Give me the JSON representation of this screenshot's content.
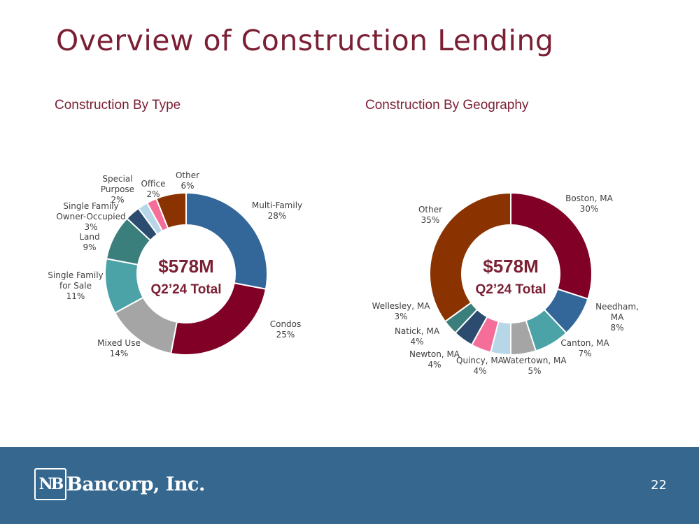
{
  "title": "Overview of Construction Lending",
  "chart_data": [
    {
      "type": "pie",
      "heading": "Construction By Type",
      "center": {
        "line1": "$578M",
        "line2": "Q2’24 Total"
      },
      "slices": [
        {
          "label": [
            "Multi-Family"
          ],
          "value": 28,
          "pct": "28%",
          "color": "#336699"
        },
        {
          "label": [
            "Condos"
          ],
          "value": 25,
          "pct": "25%",
          "color": "#800026"
        },
        {
          "label": [
            "Mixed Use"
          ],
          "value": 14,
          "pct": "14%",
          "color": "#a5a5a5"
        },
        {
          "label": [
            "Single Family",
            "for Sale"
          ],
          "value": 11,
          "pct": "11%",
          "color": "#4ba3a8"
        },
        {
          "label": [
            "Land"
          ],
          "value": 9,
          "pct": "9%",
          "color": "#3b7f7d"
        },
        {
          "label": [
            "Single Family",
            "Owner-Occupied"
          ],
          "value": 3,
          "pct": "3%",
          "color": "#2b4c6f"
        },
        {
          "label": [
            "Special",
            "Purpose"
          ],
          "value": 2,
          "pct": "2%",
          "color": "#b7d7e8"
        },
        {
          "label": [
            "Office"
          ],
          "value": 2,
          "pct": "2%",
          "color": "#f56e9a"
        },
        {
          "label": [
            "Other"
          ],
          "value": 6,
          "pct": "6%",
          "color": "#8b3300"
        }
      ]
    },
    {
      "type": "pie",
      "heading": "Construction By Geography",
      "center": {
        "line1": "$578M",
        "line2": "Q2’24 Total"
      },
      "slices": [
        {
          "label": [
            "Boston, MA"
          ],
          "value": 30,
          "pct": "30%",
          "color": "#800026"
        },
        {
          "label": [
            "Needham,",
            "MA"
          ],
          "value": 8,
          "pct": "8%",
          "color": "#336699"
        },
        {
          "label": [
            "Canton, MA"
          ],
          "value": 7,
          "pct": "7%",
          "color": "#4ba3a8"
        },
        {
          "label": [
            "Watertown, MA"
          ],
          "value": 5,
          "pct": "5%",
          "color": "#a5a5a5"
        },
        {
          "label": [
            "Quincy, MA"
          ],
          "value": 4,
          "pct": "4%",
          "color": "#b7d7e8"
        },
        {
          "label": [
            "Newton, MA"
          ],
          "value": 4,
          "pct": "4%",
          "color": "#f56e9a"
        },
        {
          "label": [
            "Natick, MA"
          ],
          "value": 4,
          "pct": "4%",
          "color": "#2b4c6f"
        },
        {
          "label": [
            "Wellesley, MA"
          ],
          "value": 3,
          "pct": "3%",
          "color": "#3b7f7d"
        },
        {
          "label": [
            "Other"
          ],
          "value": 35,
          "pct": "35%",
          "color": "#8b3300"
        }
      ]
    }
  ],
  "footer": {
    "logo_mark": "NB",
    "logo_text": "Bancorp, Inc.",
    "page_number": "22"
  },
  "colors": {
    "title": "#7b1f34",
    "footer": "#35678f"
  }
}
